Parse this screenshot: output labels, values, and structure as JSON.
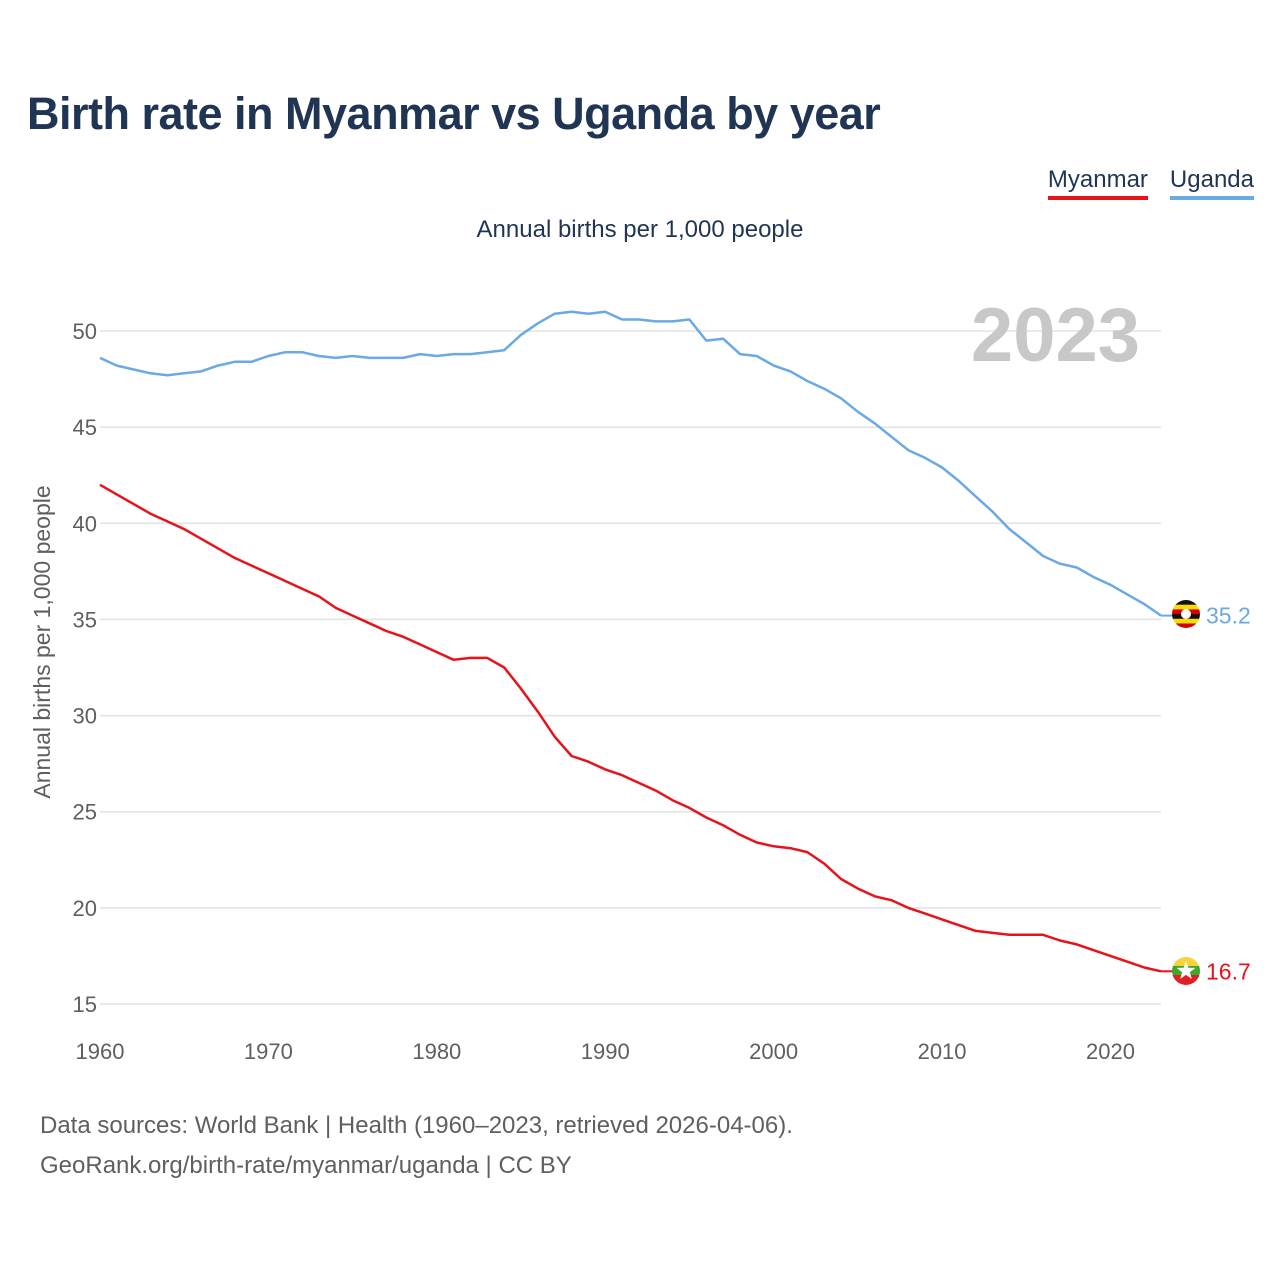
{
  "chart_data": {
    "type": "line",
    "title": "Birth rate in Myanmar vs Uganda by year",
    "subtitle": "Annual births per 1,000 people",
    "ylabel": "Annual births per 1,000 people",
    "xlabel": "",
    "xlim": [
      1960,
      2023
    ],
    "ylim": [
      15,
      53
    ],
    "yticks": [
      15,
      20,
      25,
      30,
      35,
      40,
      45,
      50
    ],
    "xticks": [
      1960,
      1970,
      1980,
      1990,
      2000,
      2010,
      2020
    ],
    "year_label": "2023",
    "grid": true,
    "legend_position": "top-right",
    "x": [
      1960,
      1961,
      1962,
      1963,
      1964,
      1965,
      1966,
      1967,
      1968,
      1969,
      1970,
      1971,
      1972,
      1973,
      1974,
      1975,
      1976,
      1977,
      1978,
      1979,
      1980,
      1981,
      1982,
      1983,
      1984,
      1985,
      1986,
      1987,
      1988,
      1989,
      1990,
      1991,
      1992,
      1993,
      1994,
      1995,
      1996,
      1997,
      1998,
      1999,
      2000,
      2001,
      2002,
      2003,
      2004,
      2005,
      2006,
      2007,
      2008,
      2009,
      2010,
      2011,
      2012,
      2013,
      2014,
      2015,
      2016,
      2017,
      2018,
      2019,
      2020,
      2021,
      2022,
      2023
    ],
    "series": [
      {
        "name": "Myanmar",
        "color": "#e8121b",
        "end_label": "16.7",
        "values": [
          42.0,
          41.5,
          41.0,
          40.5,
          40.1,
          39.7,
          39.2,
          38.7,
          38.2,
          37.8,
          37.4,
          37.0,
          36.6,
          36.2,
          35.6,
          35.2,
          34.8,
          34.4,
          34.1,
          33.7,
          33.3,
          32.9,
          33.0,
          33.0,
          32.5,
          31.4,
          30.2,
          28.9,
          27.9,
          27.6,
          27.2,
          26.9,
          26.5,
          26.1,
          25.6,
          25.2,
          24.7,
          24.3,
          23.8,
          23.4,
          23.2,
          23.1,
          22.9,
          22.3,
          21.5,
          21.0,
          20.6,
          20.4,
          20.0,
          19.7,
          19.4,
          19.1,
          18.8,
          18.7,
          18.6,
          18.6,
          18.6,
          18.3,
          18.1,
          17.8,
          17.5,
          17.2,
          16.9,
          16.7
        ]
      },
      {
        "name": "Uganda",
        "color": "#6aa9e3",
        "end_label": "35.2",
        "values": [
          48.6,
          48.2,
          48.0,
          47.8,
          47.7,
          47.8,
          47.9,
          48.2,
          48.4,
          48.4,
          48.7,
          48.9,
          48.9,
          48.7,
          48.6,
          48.7,
          48.6,
          48.6,
          48.6,
          48.8,
          48.7,
          48.8,
          48.8,
          48.9,
          49.0,
          49.8,
          50.4,
          50.9,
          51.0,
          50.9,
          51.0,
          50.6,
          50.6,
          50.5,
          50.5,
          50.6,
          49.5,
          49.6,
          48.8,
          48.7,
          48.2,
          47.9,
          47.4,
          47.0,
          46.5,
          45.8,
          45.2,
          44.5,
          43.8,
          43.4,
          42.9,
          42.2,
          41.4,
          40.6,
          39.7,
          39.0,
          38.3,
          37.9,
          37.7,
          37.2,
          36.8,
          36.3,
          35.8,
          35.2
        ]
      }
    ]
  },
  "legend": [
    "Myanmar",
    "Uganda"
  ],
  "footer": {
    "line1": "Data sources: World Bank | Health (1960–2023, retrieved 2026-04-06).",
    "line2": "GeoRank.org/birth-rate/myanmar/uganda | CC BY"
  }
}
